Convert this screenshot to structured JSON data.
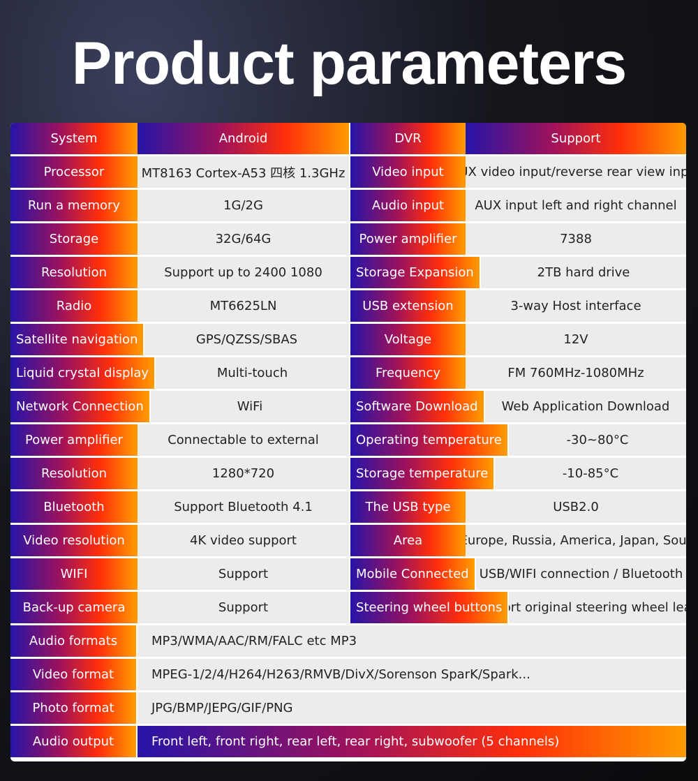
{
  "title": "Product parameters",
  "left_rows": [
    [
      "System",
      "Android"
    ],
    [
      "Processor",
      "MT8163 Cortex-A53 四核 1.3GHz"
    ],
    [
      "Run a memory",
      "1G/2G"
    ],
    [
      "Storage",
      "32G/64G"
    ],
    [
      "Resolution",
      "Support up to 2400 1080"
    ],
    [
      "Radio",
      "MT6625LN"
    ],
    [
      "Satellite navigation",
      "GPS/QZSS/SBAS"
    ],
    [
      "Liquid crystal display",
      "Multi-touch"
    ],
    [
      "Network Connection",
      "WiFi"
    ],
    [
      "Power amplifier",
      "Connectable to external"
    ],
    [
      "Resolution",
      "1280*720"
    ],
    [
      "Bluetooth",
      "Support Bluetooth 4.1"
    ],
    [
      "Video resolution",
      "4K video support"
    ],
    [
      "WIFI",
      "Support"
    ],
    [
      "Back-up camera",
      "Support"
    ]
  ],
  "right_rows": [
    [
      "DVR",
      "Support"
    ],
    [
      "Video input",
      "AUX video input/reverse rear view input"
    ],
    [
      "Audio input",
      "AUX input left and right channel"
    ],
    [
      "Power amplifier",
      "7388"
    ],
    [
      "Storage Expansion",
      "2TB hard drive"
    ],
    [
      "USB extension",
      "3-way Host interface"
    ],
    [
      "Voltage",
      "12V"
    ],
    [
      "Frequency",
      "FM 760MHz-1080MHz"
    ],
    [
      "Software Download",
      "Web Application Download"
    ],
    [
      "Operating temperature",
      "-30~80°C"
    ],
    [
      "Storage temperature",
      "-10-85°C"
    ],
    [
      "The USB type",
      "USB2.0"
    ],
    [
      "Area",
      "Asia, Europe, Russia, America, Japan, Southeast"
    ],
    [
      "Mobile Connected",
      "USB/WIFI connection / Bluetooth"
    ],
    [
      "Steering wheel buttons",
      "Support original steering wheel learning"
    ]
  ],
  "full_rows": [
    [
      "Audio formats",
      "MP3/WMA/AAC/RM/FALC etc MP3"
    ],
    [
      "Video format",
      "MPEG-1/2/4/H264/H263/RMVB/DivX/Sorenson SparK/Spark..."
    ],
    [
      "Photo format",
      "JPG/BMP/JEPG/GIF/PNG"
    ],
    [
      "Audio output",
      "Front left, front right, rear left, rear right, subwoofer (5 channels)"
    ]
  ]
}
